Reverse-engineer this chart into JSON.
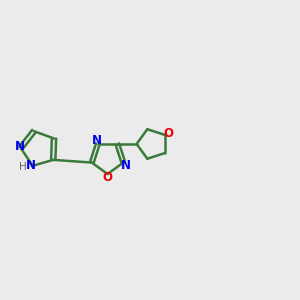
{
  "background_color": "#ebebeb",
  "bond_color": "#3a7a3a",
  "n_color": "#0000ee",
  "o_color": "#ee0000",
  "h_color": "#666666",
  "line_width": 1.8,
  "fig_size": [
    3.0,
    3.0
  ],
  "dpi": 100,
  "xlim": [
    0,
    11
  ],
  "ylim": [
    1.5,
    6.5
  ]
}
